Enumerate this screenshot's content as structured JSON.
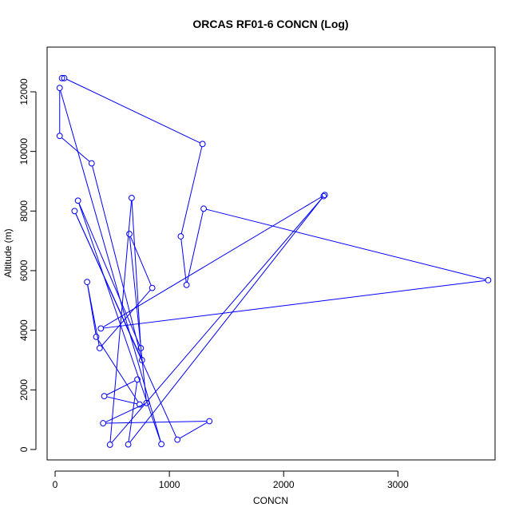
{
  "chart_data": {
    "type": "line",
    "title": "ORCAS RF01-6 CONCN (Log)",
    "xlabel": "CONCN",
    "ylabel": "Altitude (m)",
    "xlim": [
      -70,
      3850
    ],
    "ylim": [
      -350,
      13500
    ],
    "x_ticks": [
      0,
      1000,
      2000,
      3000
    ],
    "y_ticks": [
      0,
      2000,
      4000,
      6000,
      8000,
      10000,
      12000
    ],
    "grid": false,
    "legend": "none",
    "series": [
      {
        "color": "#0000ff",
        "marker": "open-circle",
        "points": [
          [
            60,
            12460
          ],
          [
            80,
            12460
          ],
          [
            1290,
            10250
          ],
          [
            1100,
            7150
          ],
          [
            1150,
            5520
          ],
          [
            1300,
            8080
          ],
          [
            3790,
            5680
          ],
          [
            400,
            4060
          ],
          [
            2360,
            8540
          ],
          [
            480,
            160
          ],
          [
            670,
            8440
          ],
          [
            750,
            3400
          ],
          [
            200,
            8350
          ],
          [
            930,
            180
          ],
          [
            40,
            12130
          ],
          [
            40,
            10520
          ],
          [
            320,
            9600
          ],
          [
            760,
            3000
          ],
          [
            170,
            8000
          ],
          [
            1070,
            330
          ],
          [
            1350,
            950
          ],
          [
            420,
            880
          ],
          [
            800,
            1560
          ],
          [
            650,
            7230
          ],
          [
            850,
            5420
          ],
          [
            390,
            3400
          ],
          [
            280,
            5620
          ],
          [
            360,
            3780
          ],
          [
            740,
            1510
          ],
          [
            430,
            1790
          ],
          [
            720,
            2350
          ],
          [
            640,
            170
          ],
          [
            2350,
            8500
          ]
        ]
      }
    ]
  }
}
